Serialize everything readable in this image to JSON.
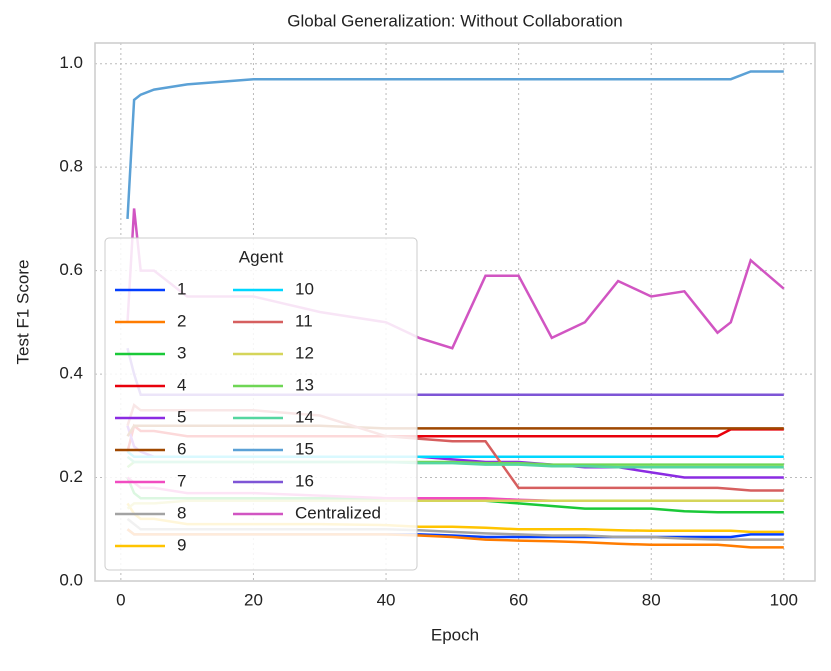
{
  "chart_data": {
    "type": "line",
    "title": "Global Generalization: Without Collaboration",
    "x_label": "Epoch",
    "y_label": "Test F1 Score",
    "x": [
      1,
      2,
      3,
      5,
      10,
      20,
      30,
      40,
      45,
      50,
      55,
      60,
      65,
      70,
      75,
      80,
      85,
      90,
      92,
      95,
      100
    ],
    "xlim": [
      -3.9,
      104.7
    ],
    "ylim": [
      0,
      1.04
    ],
    "xticks": [
      0,
      20,
      40,
      60,
      80,
      100
    ],
    "yticks": [
      {
        "value": 0,
        "label": "0.0"
      },
      {
        "value": 0.2,
        "label": "0.2"
      },
      {
        "value": 0.4,
        "label": "0.4"
      },
      {
        "value": 0.6,
        "label": "0.6"
      },
      {
        "value": 0.8,
        "label": "0.8"
      },
      {
        "value": 1,
        "label": "1.0"
      }
    ],
    "grid": true,
    "legend_title": "Agent",
    "legend_loc": "lower left",
    "series": [
      {
        "name": "1",
        "color": "#023eff",
        "values": [
          0.1,
          0.09,
          0.09,
          0.09,
          0.09,
          0.09,
          0.09,
          0.09,
          0.09,
          0.088,
          0.085,
          0.085,
          0.085,
          0.085,
          0.085,
          0.085,
          0.085,
          0.085,
          0.085,
          0.09,
          0.09
        ]
      },
      {
        "name": "2",
        "color": "#ff7c00",
        "values": [
          0.1,
          0.09,
          0.09,
          0.09,
          0.09,
          0.09,
          0.09,
          0.09,
          0.088,
          0.085,
          0.08,
          0.078,
          0.077,
          0.075,
          0.072,
          0.07,
          0.07,
          0.07,
          0.068,
          0.065,
          0.065
        ]
      },
      {
        "name": "3",
        "color": "#1ac938",
        "values": [
          0.2,
          0.17,
          0.16,
          0.16,
          0.16,
          0.16,
          0.16,
          0.16,
          0.16,
          0.158,
          0.155,
          0.15,
          0.145,
          0.14,
          0.14,
          0.14,
          0.135,
          0.133,
          0.133,
          0.133,
          0.133
        ]
      },
      {
        "name": "4",
        "color": "#e8000b",
        "values": [
          0.25,
          0.3,
          0.29,
          0.29,
          0.28,
          0.28,
          0.28,
          0.28,
          0.28,
          0.28,
          0.28,
          0.28,
          0.28,
          0.28,
          0.28,
          0.28,
          0.28,
          0.28,
          0.293,
          0.293,
          0.293
        ]
      },
      {
        "name": "5",
        "color": "#8b2be2",
        "values": [
          0.3,
          0.26,
          0.25,
          0.24,
          0.24,
          0.24,
          0.24,
          0.24,
          0.24,
          0.235,
          0.23,
          0.23,
          0.225,
          0.22,
          0.22,
          0.21,
          0.2,
          0.2,
          0.2,
          0.2,
          0.2
        ]
      },
      {
        "name": "6",
        "color": "#9f4800",
        "values": [
          0.28,
          0.3,
          0.3,
          0.3,
          0.3,
          0.3,
          0.3,
          0.295,
          0.295,
          0.295,
          0.295,
          0.295,
          0.295,
          0.295,
          0.295,
          0.295,
          0.295,
          0.295,
          0.295,
          0.295,
          0.295
        ]
      },
      {
        "name": "7",
        "color": "#f14cc1",
        "values": [
          0.2,
          0.19,
          0.18,
          0.18,
          0.17,
          0.17,
          0.165,
          0.16,
          0.16,
          0.16,
          0.16,
          0.157,
          0.155,
          0.155,
          0.155,
          0.155,
          null,
          null,
          null,
          null,
          null
        ]
      },
      {
        "name": "8",
        "color": "#a3a3a3",
        "values": [
          0.12,
          0.11,
          0.1,
          0.1,
          0.1,
          0.1,
          0.1,
          0.1,
          0.098,
          0.095,
          0.092,
          0.09,
          0.088,
          0.088,
          0.085,
          0.085,
          0.082,
          0.08,
          0.08,
          0.08,
          0.08
        ]
      },
      {
        "name": "9",
        "color": "#ffc400",
        "values": [
          0.15,
          0.13,
          0.12,
          0.12,
          0.11,
          0.11,
          0.11,
          0.108,
          0.105,
          0.105,
          0.103,
          0.1,
          0.1,
          0.1,
          0.098,
          0.097,
          0.097,
          0.097,
          0.097,
          0.095,
          0.095
        ]
      },
      {
        "name": "10",
        "color": "#00d7ff",
        "values": [
          0.25,
          0.24,
          0.24,
          0.24,
          0.24,
          0.24,
          0.24,
          0.24,
          0.24,
          0.24,
          0.24,
          0.24,
          0.24,
          0.24,
          0.24,
          0.24,
          0.24,
          0.24,
          0.24,
          0.24,
          0.24
        ]
      },
      {
        "name": "11",
        "color": "#d65f5f",
        "values": [
          0.3,
          0.34,
          0.33,
          0.33,
          0.33,
          0.33,
          0.32,
          0.28,
          0.275,
          0.27,
          0.27,
          0.18,
          0.18,
          0.18,
          0.18,
          0.18,
          0.18,
          0.18,
          0.178,
          0.175,
          0.175
        ]
      },
      {
        "name": "12",
        "color": "#d5d55a",
        "values": [
          0.14,
          0.15,
          0.15,
          0.15,
          0.155,
          0.155,
          0.155,
          0.155,
          0.155,
          0.155,
          0.155,
          0.155,
          0.155,
          0.155,
          0.155,
          0.155,
          0.155,
          0.155,
          0.155,
          0.155,
          0.155
        ]
      },
      {
        "name": "13",
        "color": "#6fd655",
        "values": [
          0.22,
          0.23,
          0.23,
          0.23,
          0.23,
          0.23,
          0.23,
          0.23,
          0.23,
          0.23,
          0.228,
          0.228,
          0.225,
          0.225,
          0.225,
          0.225,
          0.225,
          0.225,
          0.225,
          0.225,
          0.225
        ]
      },
      {
        "name": "14",
        "color": "#55d6a0",
        "values": [
          0.24,
          0.23,
          0.23,
          0.23,
          0.23,
          0.23,
          0.23,
          0.23,
          0.228,
          0.228,
          0.225,
          0.225,
          0.222,
          0.222,
          0.22,
          0.22,
          0.22,
          0.22,
          0.22,
          0.22,
          0.22
        ]
      },
      {
        "name": "15",
        "color": "#5ba1d6",
        "values": [
          0.7,
          0.93,
          0.94,
          0.95,
          0.96,
          0.97,
          0.97,
          0.97,
          0.97,
          0.97,
          0.97,
          0.97,
          0.97,
          0.97,
          0.97,
          0.97,
          0.97,
          0.97,
          0.97,
          0.985,
          0.985
        ]
      },
      {
        "name": "16",
        "color": "#7e55d6",
        "values": [
          0.45,
          0.4,
          0.36,
          0.36,
          0.36,
          0.36,
          0.36,
          0.36,
          0.36,
          0.36,
          0.36,
          0.36,
          0.36,
          0.36,
          0.36,
          0.36,
          0.36,
          0.36,
          0.36,
          0.36,
          0.36
        ]
      },
      {
        "name": "Centralized",
        "color": "#d155c2",
        "values": [
          0.5,
          0.72,
          0.6,
          0.6,
          0.55,
          0.55,
          0.52,
          0.5,
          0.47,
          0.45,
          0.59,
          0.59,
          0.47,
          0.5,
          0.58,
          0.55,
          0.56,
          0.48,
          0.5,
          0.62,
          0.565
        ]
      }
    ]
  }
}
